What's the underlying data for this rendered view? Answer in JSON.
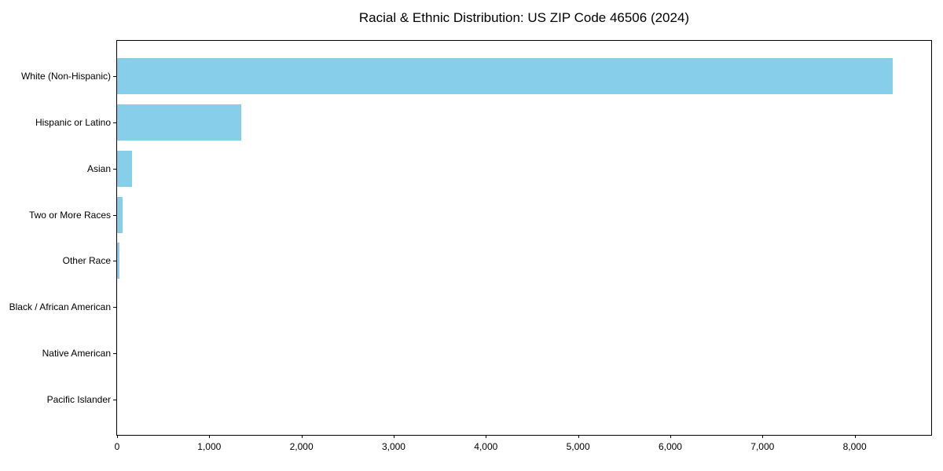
{
  "chart_data": {
    "type": "bar",
    "orientation": "horizontal",
    "title": "Racial & Ethnic Distribution: US ZIP Code 46506 (2024)",
    "categories": [
      "White (Non-Hispanic)",
      "Hispanic or Latino",
      "Asian",
      "Two or More Races",
      "Other Race",
      "Black / African American",
      "Native American",
      "Pacific Islander"
    ],
    "values": [
      8410,
      1345,
      160,
      60,
      25,
      0,
      0,
      0
    ],
    "xlabel": "",
    "ylabel": "",
    "xlim": [
      0,
      8830
    ],
    "x_ticks": [
      0,
      1000,
      2000,
      3000,
      4000,
      5000,
      6000,
      7000,
      8000
    ],
    "x_tick_labels": [
      "0",
      "1,000",
      "2,000",
      "3,000",
      "4,000",
      "5,000",
      "6,000",
      "7,000",
      "8,000"
    ],
    "bar_color": "#87CEEB",
    "axis_color": "#000000",
    "text_color": "#000000",
    "background_color": "#ffffff",
    "grid": false,
    "legend": null
  }
}
